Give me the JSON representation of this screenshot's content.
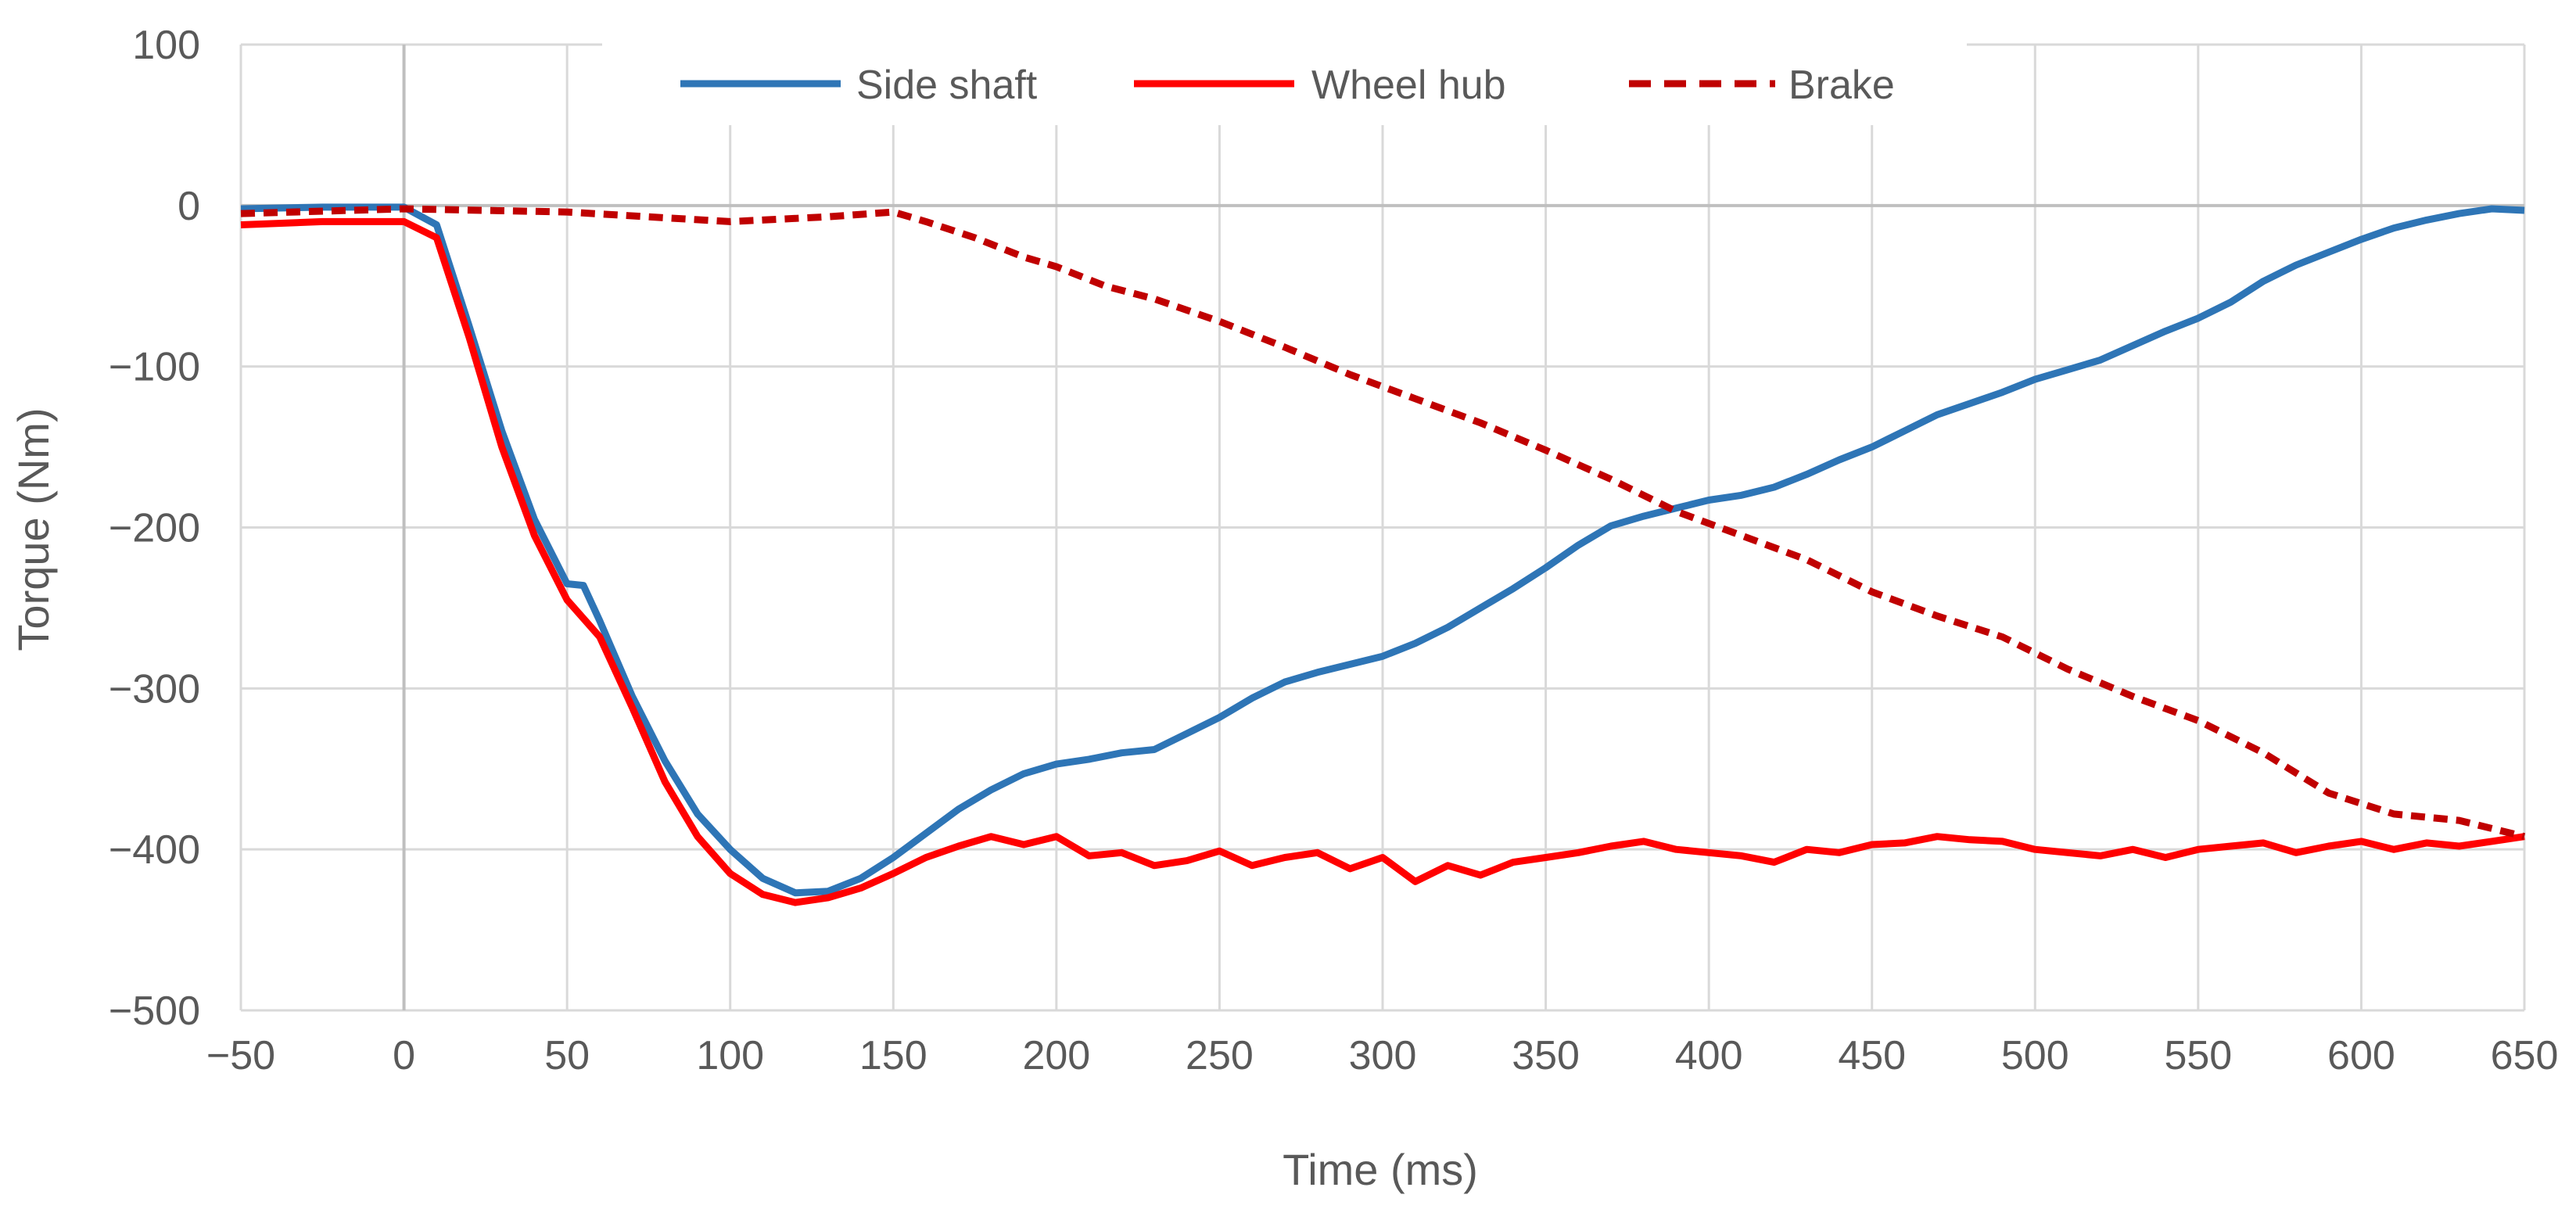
{
  "chart_data": {
    "type": "line",
    "title": "",
    "xlabel": "Time (ms)",
    "ylabel": "Torque (Nm)",
    "xlim": [
      -50,
      650
    ],
    "ylim": [
      -500,
      100
    ],
    "grid": true,
    "legend_position": "top-center",
    "x_ticks": [
      -50,
      0,
      50,
      100,
      150,
      200,
      250,
      300,
      350,
      400,
      450,
      500,
      550,
      600,
      650
    ],
    "x_tick_labels": [
      "−50",
      "0",
      "50",
      "100",
      "150",
      "200",
      "250",
      "300",
      "350",
      "400",
      "450",
      "500",
      "550",
      "600",
      "650"
    ],
    "y_ticks": [
      100,
      0,
      -100,
      -200,
      -300,
      -400,
      -500
    ],
    "y_tick_labels": [
      "100",
      "0",
      "−100",
      "−200",
      "−300",
      "−400",
      "−500"
    ],
    "series": [
      {
        "name": "Side shaft",
        "color": "#2e75b6",
        "style": "solid",
        "x": [
          -50,
          -25,
          0,
          10,
          20,
          30,
          40,
          50,
          55,
          60,
          70,
          80,
          90,
          100,
          110,
          120,
          130,
          140,
          150,
          160,
          170,
          180,
          190,
          200,
          210,
          220,
          230,
          240,
          250,
          260,
          270,
          280,
          290,
          300,
          310,
          320,
          330,
          340,
          350,
          360,
          370,
          380,
          390,
          400,
          410,
          420,
          430,
          440,
          450,
          460,
          470,
          480,
          490,
          500,
          510,
          520,
          530,
          540,
          550,
          560,
          570,
          580,
          590,
          600,
          610,
          620,
          630,
          640,
          650
        ],
        "y": [
          -2,
          -1,
          -1,
          -12,
          -75,
          -140,
          -195,
          -235,
          -236,
          -258,
          -305,
          -345,
          -378,
          -400,
          -418,
          -427,
          -426,
          -418,
          -405,
          -390,
          -375,
          -363,
          -353,
          -347,
          -344,
          -340,
          -338,
          -328,
          -318,
          -306,
          -296,
          -290,
          -285,
          -280,
          -272,
          -262,
          -250,
          -238,
          -225,
          -211,
          -199,
          -193,
          -188,
          -183,
          -180,
          -175,
          -167,
          -158,
          -150,
          -140,
          -130,
          -123,
          -116,
          -108,
          -102,
          -96,
          -87,
          -78,
          -70,
          -60,
          -47,
          -37,
          -29,
          -21,
          -14,
          -9,
          -5,
          -2,
          -3
        ]
      },
      {
        "name": "Wheel hub",
        "color": "#ff0000",
        "style": "solid",
        "x": [
          -50,
          -25,
          0,
          10,
          20,
          30,
          40,
          50,
          60,
          70,
          80,
          90,
          100,
          110,
          120,
          130,
          140,
          150,
          160,
          170,
          180,
          190,
          200,
          210,
          220,
          230,
          240,
          250,
          260,
          270,
          280,
          290,
          300,
          310,
          320,
          330,
          340,
          350,
          360,
          370,
          380,
          390,
          400,
          410,
          420,
          430,
          440,
          450,
          460,
          470,
          480,
          490,
          500,
          510,
          520,
          530,
          540,
          550,
          560,
          570,
          580,
          590,
          600,
          610,
          620,
          630,
          640,
          650
        ],
        "y": [
          -12,
          -10,
          -10,
          -20,
          -82,
          -150,
          -205,
          -245,
          -268,
          -312,
          -358,
          -392,
          -415,
          -428,
          -433,
          -430,
          -424,
          -415,
          -405,
          -398,
          -392,
          -397,
          -392,
          -404,
          -402,
          -410,
          -407,
          -401,
          -410,
          -405,
          -402,
          -412,
          -405,
          -420,
          -410,
          -416,
          -408,
          -405,
          -402,
          -398,
          -395,
          -400,
          -402,
          -404,
          -408,
          -400,
          -402,
          -397,
          -396,
          -392,
          -394,
          -395,
          -400,
          -402,
          -404,
          -400,
          -405,
          -400,
          -398,
          -396,
          -402,
          -398,
          -395,
          -400,
          -396,
          -398,
          -395,
          -392
        ]
      },
      {
        "name": "Brake",
        "color": "#c00000",
        "style": "dashed",
        "x": [
          -50,
          0,
          50,
          100,
          130,
          150,
          160,
          175,
          190,
          200,
          215,
          230,
          250,
          270,
          290,
          310,
          330,
          350,
          370,
          390,
          410,
          430,
          450,
          470,
          490,
          510,
          530,
          550,
          570,
          590,
          610,
          630,
          650
        ],
        "y": [
          -5,
          -2,
          -4,
          -10,
          -7,
          -4,
          -10,
          -20,
          -32,
          -38,
          -50,
          -58,
          -72,
          -88,
          -105,
          -120,
          -135,
          -152,
          -170,
          -190,
          -205,
          -220,
          -240,
          -255,
          -268,
          -288,
          -305,
          -320,
          -340,
          -365,
          -378,
          -382,
          -392
        ]
      }
    ]
  }
}
